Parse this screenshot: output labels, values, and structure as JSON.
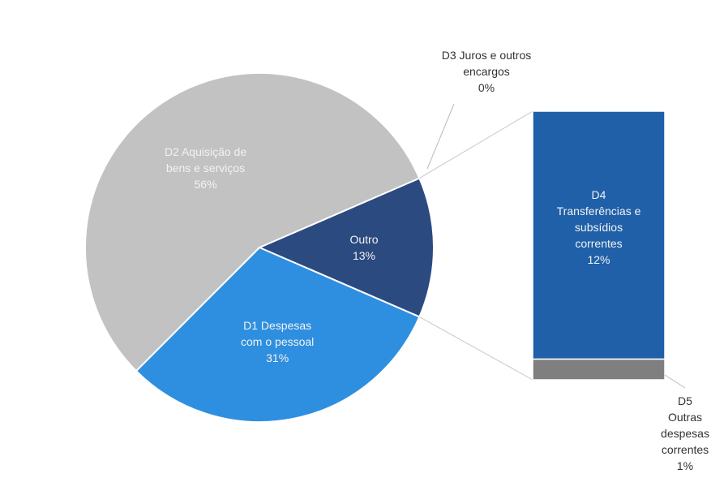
{
  "chart_data": {
    "type": "pie_of_bar",
    "categories": [
      "Outro",
      "D1 Despesas\ncom o pessoal",
      "D2 Aquisição de\nbens e serviços"
    ],
    "values": [
      13,
      31,
      56
    ],
    "value_labels": [
      "13%",
      "31%",
      "56%"
    ],
    "colors": [
      "#2b4a80",
      "#2e8fe0",
      "#c2c2c2"
    ],
    "bar": {
      "categories": [
        "D3 Juros e outros\nencargos",
        "D4\nTransferências e\nsubsídios\ncorrentes",
        "D5 Outras\ndespesas\ncorrentes"
      ],
      "values": [
        0,
        12,
        1
      ],
      "value_labels": [
        "0%",
        "12%",
        "1%"
      ],
      "colors": [
        "#b0b0b0",
        "#1f60a8",
        "#7f7f7f"
      ]
    }
  }
}
